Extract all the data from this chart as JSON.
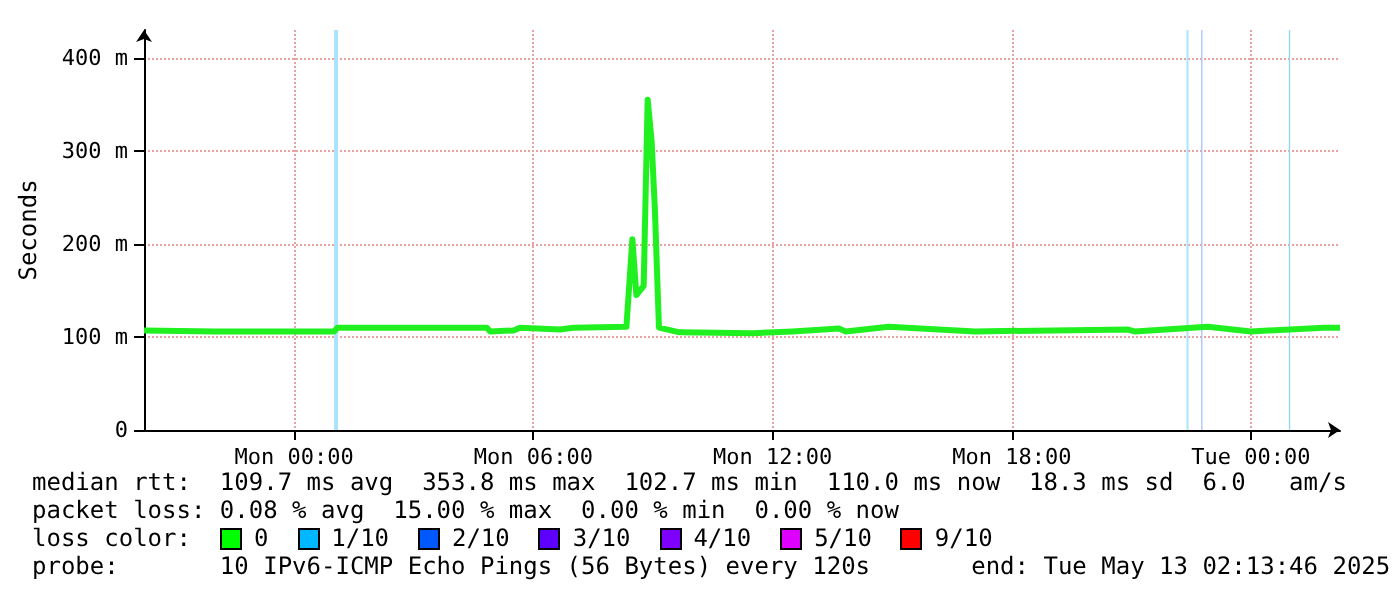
{
  "chart_data": {
    "type": "line",
    "ylabel": "Seconds",
    "x": [
      "2025-05-11T20:14",
      "2025-05-11T22:00",
      "2025-05-12T01:00",
      "2025-05-12T01:05",
      "2025-05-12T04:50",
      "2025-05-12T04:55",
      "2025-05-12T05:30",
      "2025-05-12T05:40",
      "2025-05-12T06:40",
      "2025-05-12T07:00",
      "2025-05-12T08:20",
      "2025-05-12T08:29",
      "2025-05-12T08:35",
      "2025-05-12T08:46",
      "2025-05-12T08:52",
      "2025-05-12T08:58",
      "2025-05-12T09:03",
      "2025-05-12T09:09",
      "2025-05-12T09:40",
      "2025-05-12T11:30",
      "2025-05-12T12:30",
      "2025-05-12T13:40",
      "2025-05-12T13:50",
      "2025-05-12T14:55",
      "2025-05-12T17:05",
      "2025-05-12T20:55",
      "2025-05-12T21:05",
      "2025-05-12T22:55",
      "2025-05-13T00:00",
      "2025-05-13T01:50",
      "2025-05-13T02:14"
    ],
    "series": [
      {
        "color": "#20f020",
        "values": [
          107,
          106,
          106,
          110,
          110,
          106,
          107,
          110,
          108,
          110,
          111,
          205,
          145,
          155,
          355,
          310,
          235,
          110,
          105,
          104,
          106,
          109,
          106,
          111,
          106,
          108,
          106,
          111,
          106,
          110,
          110
        ]
      }
    ],
    "xlim": [
      "2025-05-11T20:14",
      "2025-05-13T02:14"
    ],
    "xticks": [
      {
        "value": "2025-05-12T00:00",
        "label": "Mon 00:00"
      },
      {
        "value": "2025-05-12T06:00",
        "label": "Mon 06:00"
      },
      {
        "value": "2025-05-12T12:00",
        "label": "Mon 12:00"
      },
      {
        "value": "2025-05-12T18:00",
        "label": "Mon 18:00"
      },
      {
        "value": "2025-05-13T00:00",
        "label": "Tue 00:00"
      }
    ],
    "ylim": [
      0,
      430
    ],
    "yticks": [
      0,
      {
        "value": 100,
        "label": "100 m"
      },
      {
        "value": 200,
        "label": "200 m"
      },
      {
        "value": 300,
        "label": "300 m"
      },
      {
        "value": 400,
        "label": "400 m"
      }
    ],
    "bands": [
      {
        "axis": "x",
        "from": "2025-05-12T01:00",
        "to": "2025-05-12T01:06",
        "color": "#a8e4ff"
      },
      {
        "axis": "x",
        "from": "2025-05-12T22:23",
        "to": "2025-05-12T22:26",
        "color": "#a8e4ff"
      },
      {
        "axis": "x",
        "from": "2025-05-12T22:45",
        "to": "2025-05-12T22:47",
        "color": "#a8c4ff"
      },
      {
        "axis": "x",
        "from": "2025-05-13T00:57",
        "to": "2025-05-13T00:59",
        "color": "#90d8f0"
      }
    ],
    "grid": true,
    "marker": "none",
    "line_style": "solid",
    "annotations": [
      "median rtt:  109.7 ms avg  353.8 ms max  102.7 ms min  110.0 ms now  18.3 ms sd  6.0   am/s",
      "packet loss: 0.08 % avg  15.00 % max  0.00 % min  0.00 % now",
      "loss color:  0  1/10  2/10  3/10  4/10  5/10  9/10",
      "probe:       10 IPv6-ICMP Echo Pings (56 Bytes) every 120s       end: Tue May 13 02:13:46 2025"
    ]
  }
}
